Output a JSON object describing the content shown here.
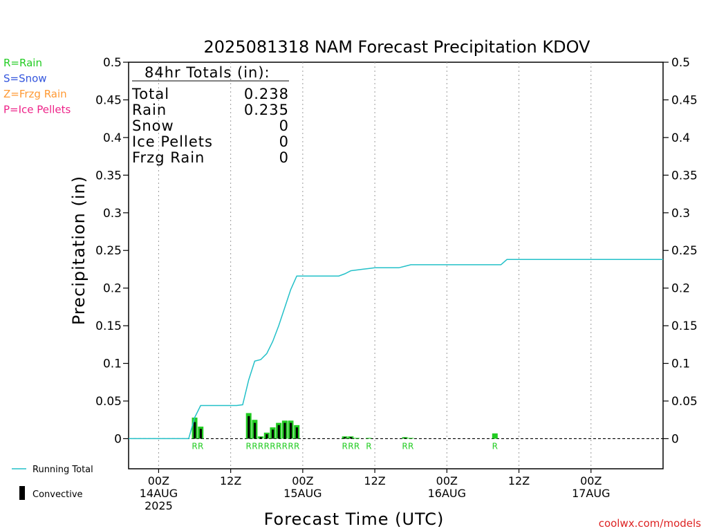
{
  "chart_data": {
    "type": "bar",
    "title": "2025081318 NAM Forecast Precipitation KDOV",
    "xlabel": "Forecast Time (UTC)",
    "ylabel": "Precipitation (in)",
    "ylim": [
      -0.04,
      0.5
    ],
    "xlim_hours": [
      -5,
      84
    ],
    "grid": "vertical dotted",
    "y_ticks": [
      "0.5",
      "0.45",
      "0.4",
      "0.35",
      "0.3",
      "0.25",
      "0.2",
      "0.15",
      "0.1",
      "0.05",
      "0"
    ],
    "y_tick_values": [
      0.5,
      0.45,
      0.4,
      0.35,
      0.3,
      0.25,
      0.2,
      0.15,
      0.1,
      0.05,
      0
    ],
    "x_ticks": [
      {
        "hour": 0,
        "l1": "00Z",
        "l2": "14AUG",
        "l3": "2025"
      },
      {
        "hour": 12,
        "l1": "12Z",
        "l2": "",
        "l3": ""
      },
      {
        "hour": 24,
        "l1": "00Z",
        "l2": "15AUG",
        "l3": ""
      },
      {
        "hour": 36,
        "l1": "12Z",
        "l2": "",
        "l3": ""
      },
      {
        "hour": 48,
        "l1": "00Z",
        "l2": "16AUG",
        "l3": ""
      },
      {
        "hour": 60,
        "l1": "12Z",
        "l2": "",
        "l3": ""
      },
      {
        "hour": 72,
        "l1": "00Z",
        "l2": "17AUG",
        "l3": ""
      }
    ],
    "precip_type_legend": [
      {
        "label": "R=Rain",
        "color": "#22cc22"
      },
      {
        "label": "S=Snow",
        "color": "#3355dd"
      },
      {
        "label": "Z=Frzg Rain",
        "color": "#ff9933"
      },
      {
        "label": "P=Ice Pellets",
        "color": "#ee2288"
      }
    ],
    "series_legend": [
      {
        "label": "Running Total",
        "color": "#22c0c8"
      },
      {
        "label": "Convective",
        "color": "#000000"
      }
    ],
    "totals_box": {
      "heading": "84hr Totals (in):",
      "rows": [
        {
          "label": "Total",
          "value": "0.238"
        },
        {
          "label": "Rain",
          "value": "0.235"
        },
        {
          "label": "Snow",
          "value": "0"
        },
        {
          "label": "Ice Pellets",
          "value": "0"
        },
        {
          "label": "Frzg Rain",
          "value": "0"
        }
      ]
    },
    "running_total": {
      "color": "#22c0c8",
      "x": [
        -5,
        5,
        6,
        7,
        8,
        9,
        10,
        11,
        12,
        13,
        14,
        15,
        16,
        17,
        18,
        19,
        20,
        21,
        22,
        23,
        24,
        25,
        26,
        27,
        28,
        29,
        30,
        31,
        32,
        33,
        34,
        35,
        36,
        37,
        38,
        39,
        40,
        41,
        42,
        43,
        44,
        45,
        46,
        47,
        48,
        49,
        50,
        51,
        52,
        53,
        54,
        55,
        56,
        57,
        58,
        59,
        60,
        84
      ],
      "y": [
        0,
        0,
        0.028,
        0.044,
        0.044,
        0.044,
        0.044,
        0.044,
        0.044,
        0.044,
        0.045,
        0.078,
        0.103,
        0.105,
        0.113,
        0.129,
        0.15,
        0.174,
        0.198,
        0.216,
        0.216,
        0.216,
        0.216,
        0.216,
        0.216,
        0.216,
        0.216,
        0.219,
        0.223,
        0.224,
        0.225,
        0.226,
        0.227,
        0.227,
        0.227,
        0.227,
        0.227,
        0.229,
        0.231,
        0.231,
        0.231,
        0.231,
        0.231,
        0.231,
        0.231,
        0.231,
        0.231,
        0.231,
        0.231,
        0.231,
        0.231,
        0.231,
        0.231,
        0.231,
        0.238,
        0.238,
        0.238,
        0.238
      ]
    },
    "hourly_bars": [
      {
        "hour": 6,
        "value": 0.028,
        "convective": 0.022
      },
      {
        "hour": 7,
        "value": 0.016,
        "convective": 0.013
      },
      {
        "hour": 15,
        "value": 0.034,
        "convective": 0.03
      },
      {
        "hour": 16,
        "value": 0.025,
        "convective": 0.021
      },
      {
        "hour": 17,
        "value": 0.003,
        "convective": 0.002
      },
      {
        "hour": 18,
        "value": 0.008,
        "convective": 0.006
      },
      {
        "hour": 19,
        "value": 0.015,
        "convective": 0.012
      },
      {
        "hour": 20,
        "value": 0.021,
        "convective": 0.018
      },
      {
        "hour": 21,
        "value": 0.024,
        "convective": 0.021
      },
      {
        "hour": 22,
        "value": 0.024,
        "convective": 0.021
      },
      {
        "hour": 23,
        "value": 0.018,
        "convective": 0.015
      },
      {
        "hour": 31,
        "value": 0.003,
        "convective": 0.002
      },
      {
        "hour": 32,
        "value": 0.003,
        "convective": 0.002
      },
      {
        "hour": 33,
        "value": 0.001,
        "convective": 0
      },
      {
        "hour": 35,
        "value": 0.001,
        "convective": 0
      },
      {
        "hour": 41,
        "value": 0.002,
        "convective": 0.001
      },
      {
        "hour": 42,
        "value": 0.001,
        "convective": 0
      },
      {
        "hour": 56,
        "value": 0.007,
        "convective": 0
      }
    ],
    "ptype_marks": [
      {
        "hour": 6,
        "label": "R"
      },
      {
        "hour": 7,
        "label": "R"
      },
      {
        "hour": 15,
        "label": "R"
      },
      {
        "hour": 16,
        "label": "R"
      },
      {
        "hour": 17,
        "label": "R"
      },
      {
        "hour": 18,
        "label": "R"
      },
      {
        "hour": 19,
        "label": "R"
      },
      {
        "hour": 20,
        "label": "R"
      },
      {
        "hour": 21,
        "label": "R"
      },
      {
        "hour": 22,
        "label": "R"
      },
      {
        "hour": 23,
        "label": "R"
      },
      {
        "hour": 31,
        "label": "R"
      },
      {
        "hour": 32,
        "label": "R"
      },
      {
        "hour": 33,
        "label": "R"
      },
      {
        "hour": 35,
        "label": "R"
      },
      {
        "hour": 41,
        "label": "R"
      },
      {
        "hour": 42,
        "label": "R"
      },
      {
        "hour": 56,
        "label": "R"
      }
    ]
  },
  "footer": {
    "credit": "coolwx.com/models"
  },
  "colors": {
    "rain": "#22cc22",
    "running_total": "#22c0c8",
    "credit": "#dd2222"
  }
}
